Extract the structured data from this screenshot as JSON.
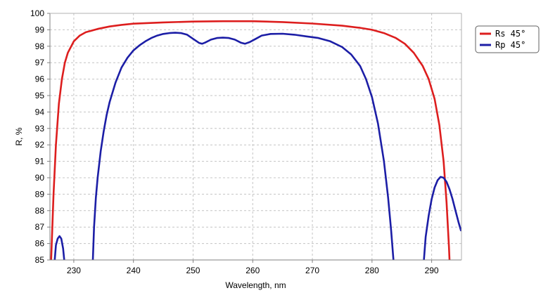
{
  "chart_data": {
    "type": "line",
    "xlabel": "Wavelength, nm",
    "ylabel": "R, %",
    "xlim": [
      226,
      295
    ],
    "ylim": [
      85,
      100
    ],
    "xticks": [
      230,
      240,
      250,
      260,
      270,
      280,
      290
    ],
    "yticks": [
      85,
      86,
      87,
      88,
      89,
      90,
      91,
      92,
      93,
      94,
      95,
      96,
      97,
      98,
      99,
      100
    ],
    "grid": true,
    "legend_position": "top-right",
    "series": [
      {
        "name": "Rs 45°",
        "color": "#dd1e1e",
        "points": [
          [
            226.2,
            85.0
          ],
          [
            226.6,
            89.0
          ],
          [
            227.0,
            92.0
          ],
          [
            227.5,
            94.5
          ],
          [
            228.0,
            96.0
          ],
          [
            228.5,
            97.0
          ],
          [
            229.0,
            97.6
          ],
          [
            230.0,
            98.3
          ],
          [
            231.0,
            98.65
          ],
          [
            232.0,
            98.85
          ],
          [
            234.0,
            99.05
          ],
          [
            236.0,
            99.2
          ],
          [
            238.0,
            99.3
          ],
          [
            240.0,
            99.37
          ],
          [
            245.0,
            99.45
          ],
          [
            250.0,
            99.5
          ],
          [
            255.0,
            99.52
          ],
          [
            260.0,
            99.52
          ],
          [
            265.0,
            99.47
          ],
          [
            270.0,
            99.38
          ],
          [
            275.0,
            99.25
          ],
          [
            278.0,
            99.12
          ],
          [
            280.0,
            99.0
          ],
          [
            282.0,
            98.8
          ],
          [
            284.0,
            98.5
          ],
          [
            285.5,
            98.15
          ],
          [
            287.0,
            97.6
          ],
          [
            288.5,
            96.8
          ],
          [
            289.5,
            96.0
          ],
          [
            290.5,
            94.8
          ],
          [
            291.3,
            93.2
          ],
          [
            292.0,
            91.0
          ],
          [
            292.5,
            88.5
          ],
          [
            292.9,
            85.8
          ],
          [
            293.0,
            85.0
          ]
        ]
      },
      {
        "name": "Rp 45°",
        "color": "#1c1ea6",
        "segments": [
          [
            [
              226.8,
              85.0
            ],
            [
              227.0,
              85.9
            ],
            [
              227.3,
              86.3
            ],
            [
              227.6,
              86.45
            ],
            [
              227.9,
              86.3
            ],
            [
              228.2,
              85.7
            ],
            [
              228.4,
              85.0
            ]
          ],
          [
            [
              233.2,
              85.0
            ],
            [
              233.4,
              87.0
            ],
            [
              233.7,
              88.8
            ],
            [
              234.0,
              90.0
            ],
            [
              234.5,
              91.6
            ],
            [
              235.0,
              92.8
            ],
            [
              235.5,
              93.8
            ],
            [
              236.0,
              94.6
            ],
            [
              237.0,
              95.8
            ],
            [
              238.0,
              96.7
            ],
            [
              239.0,
              97.3
            ],
            [
              240.0,
              97.75
            ],
            [
              241.0,
              98.05
            ],
            [
              242.0,
              98.3
            ],
            [
              243.0,
              98.5
            ],
            [
              244.0,
              98.65
            ],
            [
              245.0,
              98.75
            ],
            [
              246.0,
              98.8
            ],
            [
              247.0,
              98.82
            ],
            [
              248.0,
              98.8
            ],
            [
              249.0,
              98.7
            ],
            [
              250.0,
              98.45
            ],
            [
              251.0,
              98.2
            ],
            [
              251.5,
              98.15
            ],
            [
              252.0,
              98.22
            ],
            [
              253.0,
              98.4
            ],
            [
              254.0,
              98.5
            ],
            [
              255.0,
              98.52
            ],
            [
              256.0,
              98.5
            ],
            [
              257.0,
              98.4
            ],
            [
              258.0,
              98.22
            ],
            [
              258.7,
              98.15
            ],
            [
              259.5,
              98.25
            ],
            [
              260.5,
              98.45
            ],
            [
              261.5,
              98.65
            ],
            [
              263.0,
              98.75
            ],
            [
              265.0,
              98.76
            ],
            [
              267.0,
              98.7
            ],
            [
              269.0,
              98.6
            ],
            [
              271.0,
              98.5
            ],
            [
              273.0,
              98.3
            ],
            [
              275.0,
              97.95
            ],
            [
              276.5,
              97.5
            ],
            [
              278.0,
              96.8
            ],
            [
              279.0,
              96.0
            ],
            [
              280.0,
              94.9
            ],
            [
              281.0,
              93.3
            ],
            [
              282.0,
              91.0
            ],
            [
              282.7,
              88.8
            ],
            [
              283.2,
              86.8
            ],
            [
              283.6,
              85.0
            ]
          ],
          [
            [
              288.7,
              85.0
            ],
            [
              289.0,
              86.4
            ],
            [
              289.5,
              87.7
            ],
            [
              290.0,
              88.7
            ],
            [
              290.5,
              89.4
            ],
            [
              291.0,
              89.85
            ],
            [
              291.5,
              90.05
            ],
            [
              292.0,
              90.0
            ],
            [
              292.5,
              89.75
            ],
            [
              293.0,
              89.3
            ],
            [
              293.5,
              88.7
            ],
            [
              294.0,
              88.0
            ],
            [
              294.5,
              87.3
            ],
            [
              294.9,
              86.8
            ]
          ]
        ]
      }
    ]
  }
}
